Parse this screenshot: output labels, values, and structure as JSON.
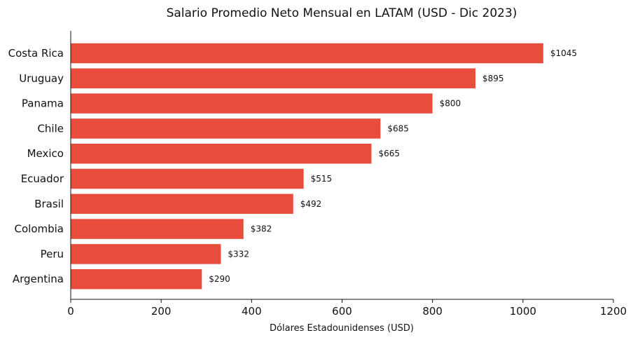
{
  "chart_data": {
    "type": "bar",
    "orientation": "horizontal",
    "title": "Salario Promedio Neto Mensual en LATAM (USD - Dic 2023)",
    "xlabel": "Dólares Estadounidenses (USD)",
    "ylabel": "",
    "xlim": [
      0,
      1200
    ],
    "xticks": [
      0,
      200,
      400,
      600,
      800,
      1000,
      1200
    ],
    "grid": false,
    "bar_color": "#E84C3D",
    "categories": [
      "Costa Rica",
      "Uruguay",
      "Panama",
      "Chile",
      "Mexico",
      "Ecuador",
      "Brasil",
      "Colombia",
      "Peru",
      "Argentina"
    ],
    "values": [
      1045,
      895,
      800,
      685,
      665,
      515,
      492,
      382,
      332,
      290
    ],
    "value_labels": [
      "$1045",
      "$895",
      "$800",
      "$685",
      "$665",
      "$515",
      "$492",
      "$382",
      "$332",
      "$290"
    ]
  }
}
